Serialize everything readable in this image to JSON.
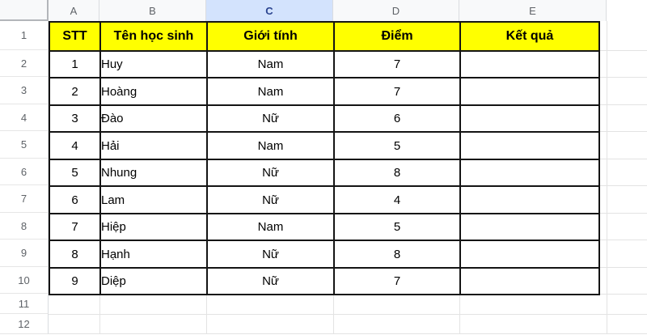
{
  "sheet": {
    "column_headers": [
      "A",
      "B",
      "C",
      "D",
      "E"
    ],
    "selected_column": "C",
    "row_numbers": [
      "1",
      "2",
      "3",
      "4",
      "5",
      "6",
      "7",
      "8",
      "9",
      "10",
      "11",
      "12"
    ],
    "table": {
      "headers": [
        "STT",
        "Tên học sinh",
        "Giới tính",
        "Điểm",
        "Kết quả"
      ],
      "rows": [
        {
          "stt": "1",
          "name": "Huy",
          "gender": "Nam",
          "score": "7",
          "result": ""
        },
        {
          "stt": "2",
          "name": "Hoàng",
          "gender": "Nam",
          "score": "7",
          "result": ""
        },
        {
          "stt": "3",
          "name": "Đào",
          "gender": "Nữ",
          "score": "6",
          "result": ""
        },
        {
          "stt": "4",
          "name": "Hải",
          "gender": "Nam",
          "score": "5",
          "result": ""
        },
        {
          "stt": "5",
          "name": "Nhung",
          "gender": "Nữ",
          "score": "8",
          "result": ""
        },
        {
          "stt": "6",
          "name": "Lam",
          "gender": "Nữ",
          "score": "4",
          "result": ""
        },
        {
          "stt": "7",
          "name": "Hiệp",
          "gender": "Nam",
          "score": "5",
          "result": ""
        },
        {
          "stt": "8",
          "name": "Hạnh",
          "gender": "Nữ",
          "score": "8",
          "result": ""
        },
        {
          "stt": "9",
          "name": "Diệp",
          "gender": "Nữ",
          "score": "7",
          "result": ""
        }
      ]
    },
    "colors": {
      "table_header_fill": "#ffff00",
      "selected_column_fill": "#d3e3fd",
      "selected_column_text": "#2b4490",
      "table_border": "#141414",
      "gridline": "#e3e3e3",
      "header_text": "#5f6368"
    }
  }
}
